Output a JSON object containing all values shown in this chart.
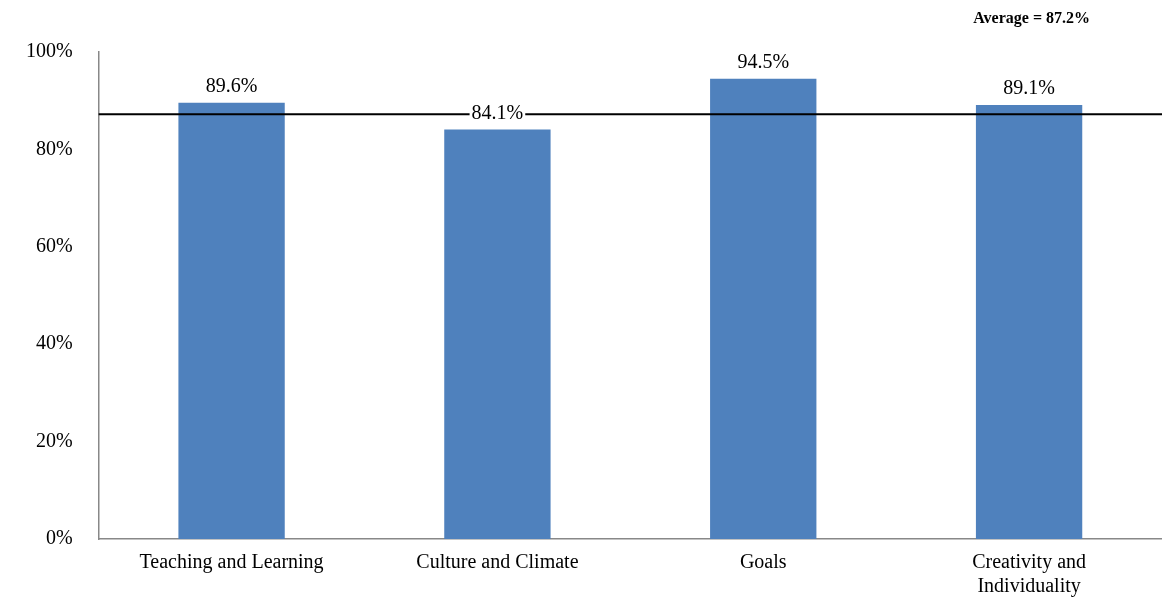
{
  "chart_data": {
    "type": "bar",
    "categories": [
      "Teaching and Learning",
      "Culture and Climate",
      "Goals",
      "Creativity and Individuality"
    ],
    "values": [
      89.6,
      84.1,
      94.5,
      89.1
    ],
    "color": "#4f81bd",
    "value_labels": [
      "89.6%",
      "84.1%",
      "94.5%",
      "89.1%"
    ],
    "ylim": [
      0,
      100
    ],
    "yticks": [
      {
        "value": 0,
        "label": "0%"
      },
      {
        "value": 20,
        "label": "20%"
      },
      {
        "value": 40,
        "label": "40%"
      },
      {
        "value": 60,
        "label": "60%"
      },
      {
        "value": 80,
        "label": "80%"
      },
      {
        "value": 100,
        "label": "100%"
      }
    ],
    "ref_lines": [
      {
        "axis": "y",
        "value": 87.2,
        "label": "Average = 87.2%",
        "color": "#000000"
      }
    ],
    "grid": false,
    "legend": false
  }
}
